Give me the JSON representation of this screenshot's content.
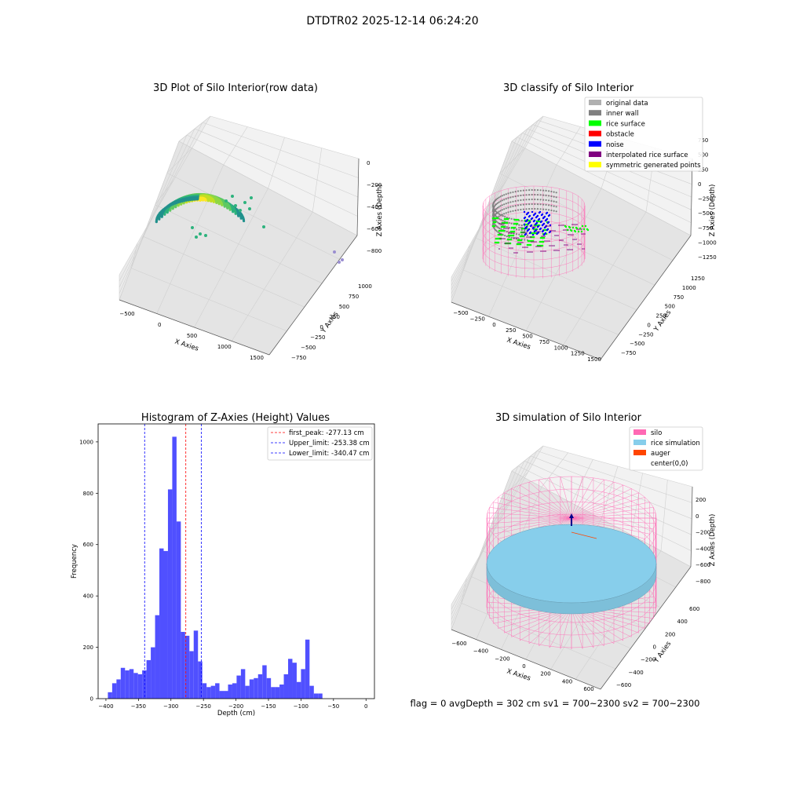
{
  "suptitle": "DTDTR02 2025-12-14 06:24:20",
  "footer": "flag = 0     avgDepth = 302 cm  sv1 = 700~2300  sv2 = 700~2300",
  "colors": {
    "histogram_bar": "#5050ff",
    "first_peak": "#ff0000",
    "limits": "#0000ff",
    "silo": "#ff69b4",
    "rice_simulation": "#87ceeb",
    "auger": "#ff4500",
    "original_data": "#b0b0b0",
    "inner_wall": "#808080",
    "rice_surface": "#00ff00",
    "obstacle": "#ff0000",
    "noise": "#0000ff",
    "interpolated_rice_surface": "#800080",
    "symmetric_generated_points": "#ffff00"
  },
  "chart_data": [
    {
      "type": "scatter",
      "title": "3D Plot of Silo Interior(row data)",
      "xlabel": "X Axies",
      "ylabel": "Y Axies",
      "zlabel": "Z Axies (Depth)",
      "x_ticks": [
        "−500",
        "0",
        "500",
        "1000",
        "1500"
      ],
      "y_ticks": [
        "−750",
        "−500",
        "−250",
        "0",
        "250",
        "500",
        "750",
        "1000"
      ],
      "z_ticks": [
        "0",
        "−200",
        "−400",
        "−600",
        "−800"
      ],
      "colormap": "viridis"
    },
    {
      "type": "scatter",
      "title": "3D classify of Silo Interior",
      "xlabel": "X Axies",
      "ylabel": "Y Axies",
      "zlabel": "Z Axies (Depth)",
      "x_ticks": [
        "−500",
        "−250",
        "0",
        "250",
        "500",
        "750",
        "1000",
        "1250",
        "1500"
      ],
      "y_ticks": [
        "−750",
        "−500",
        "−250",
        "0",
        "250",
        "500",
        "750",
        "1000",
        "1250"
      ],
      "z_ticks": [
        "750",
        "500",
        "250",
        "0",
        "−250",
        "−500",
        "−750",
        "−1000",
        "−1250"
      ],
      "legend": [
        "original data",
        "inner wall",
        "rice surface",
        "obstacle",
        "noise",
        "interpolated rice surface",
        "symmetric generated points"
      ],
      "legend_placement": "top-right"
    },
    {
      "type": "bar",
      "title": "Histogram of Z-Axies (Height) Values",
      "xlabel": "Depth (cm)",
      "ylabel": "Frequency",
      "xlim": [
        -412,
        13
      ],
      "ylim": [
        0,
        1070
      ],
      "x_ticks": [
        -400,
        -350,
        -300,
        -250,
        -200,
        -150,
        -100,
        -50,
        0
      ],
      "x_tick_labels": [
        "−400",
        "−350",
        "−300",
        "−250",
        "−200",
        "−150",
        "−100",
        "−50",
        "0"
      ],
      "y_ticks": [
        0,
        200,
        400,
        600,
        800,
        1000
      ],
      "bin_start": -397,
      "bin_width": 6.6,
      "values": [
        25,
        60,
        75,
        120,
        110,
        115,
        100,
        95,
        110,
        150,
        200,
        325,
        585,
        575,
        815,
        1020,
        690,
        260,
        245,
        185,
        265,
        145,
        60,
        45,
        50,
        60,
        30,
        30,
        55,
        60,
        90,
        115,
        50,
        75,
        80,
        95,
        130,
        80,
        45,
        45,
        55,
        95,
        155,
        140,
        65,
        115,
        230,
        50,
        20,
        20
      ],
      "lines": [
        {
          "label": "first_peak: -277.13 cm",
          "x": -277.13,
          "style": "red"
        },
        {
          "label": "Upper_limit: -253.38 cm",
          "x": -253.38,
          "style": "blue"
        },
        {
          "label": "Lower_limit: -340.47 cm",
          "x": -340.47,
          "style": "blue"
        }
      ],
      "legend_placement": "top-right"
    },
    {
      "type": "scatter",
      "title": "3D simulation of Silo Interior",
      "xlabel": "X Axies",
      "ylabel": "Y Axies",
      "zlabel": "Z Axies (Depth)",
      "x_ticks": [
        "−600",
        "−400",
        "−200",
        "0",
        "200",
        "400",
        "600"
      ],
      "y_ticks": [
        "−600",
        "−400",
        "−200",
        "0",
        "200",
        "400",
        "600"
      ],
      "z_ticks": [
        "200",
        "0",
        "−200",
        "−400",
        "−600",
        "−800"
      ],
      "legend": [
        "silo",
        "rice simulation",
        "auger",
        "center(0,0)"
      ],
      "legend_placement": "top-right"
    }
  ]
}
